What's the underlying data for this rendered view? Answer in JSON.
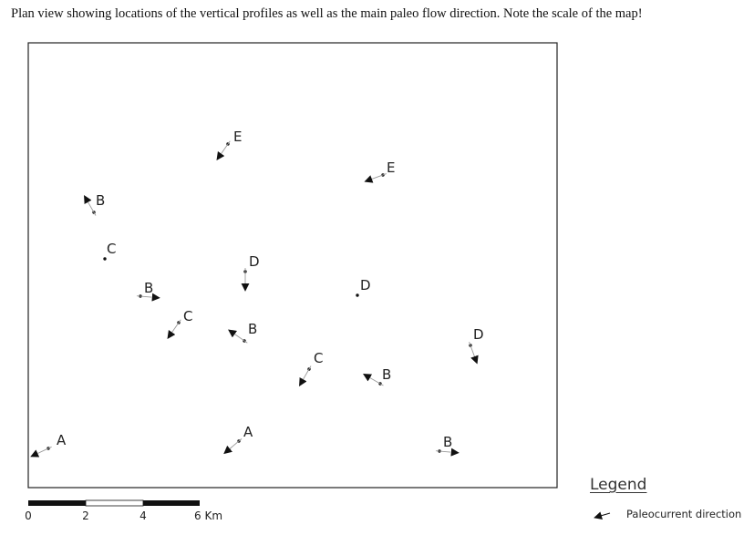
{
  "title": "Plan view showing locations of the vertical profiles as well as the main paleo flow direction. Note the scale of the map!",
  "profiles": [
    {
      "id": "E1",
      "label": "E",
      "flow_deg": 235
    },
    {
      "id": "E2",
      "label": "E",
      "flow_deg": 200
    },
    {
      "id": "B1",
      "label": "B",
      "flow_deg": 120
    },
    {
      "id": "C1",
      "label": "C"
    },
    {
      "id": "D1",
      "label": "D",
      "flow_deg": 270
    },
    {
      "id": "B2",
      "label": "B",
      "flow_deg": 355
    },
    {
      "id": "D2",
      "label": "D"
    },
    {
      "id": "C2",
      "label": "C",
      "flow_deg": 235
    },
    {
      "id": "B3",
      "label": "B",
      "flow_deg": 145
    },
    {
      "id": "D3",
      "label": "D",
      "flow_deg": 290
    },
    {
      "id": "C3",
      "label": "C",
      "flow_deg": 240
    },
    {
      "id": "B4",
      "label": "B",
      "flow_deg": 150
    },
    {
      "id": "A1",
      "label": "A",
      "flow_deg": 205
    },
    {
      "id": "A2",
      "label": "A",
      "flow_deg": 220
    },
    {
      "id": "B5",
      "label": "B",
      "flow_deg": 355
    }
  ],
  "scale_bar": {
    "ticks": [
      "0",
      "2",
      "4",
      "6 Km"
    ]
  },
  "legend": {
    "title": "Legend",
    "item_label": "Paleocurrent direction",
    "item_icon": "arrow-icon"
  },
  "colors": {
    "ink": "#111111",
    "arrow_tail": "#bbbbbb"
  }
}
